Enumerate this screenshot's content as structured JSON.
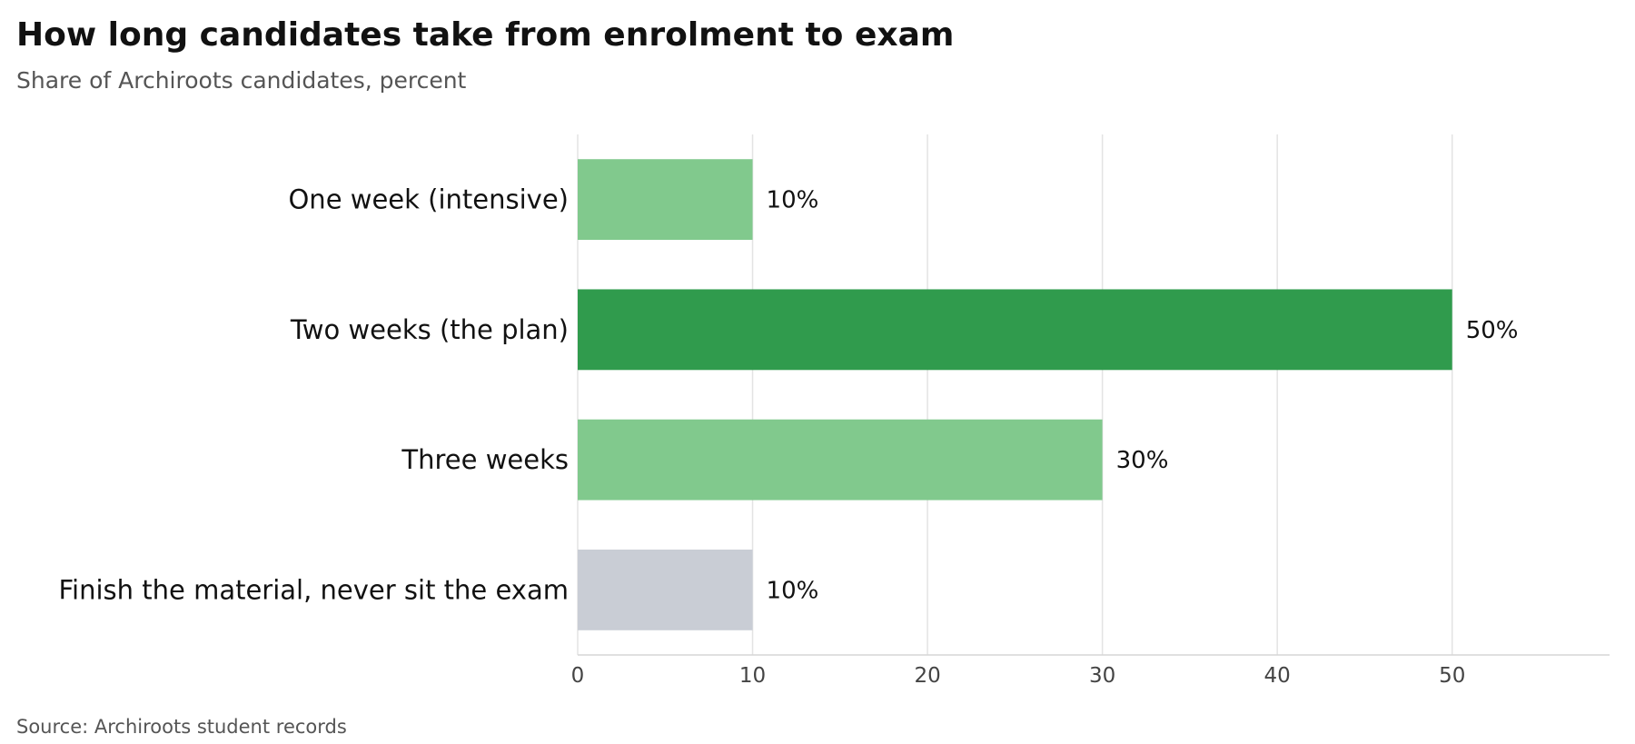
{
  "page": {
    "title": "How long candidates take from enrolment to exam",
    "subtitle": "Share of Archiroots candidates, percent",
    "source": "Source: Archiroots student records"
  },
  "chart_data": {
    "type": "bar",
    "orientation": "horizontal",
    "title": "How long candidates take from enrolment to exam",
    "subtitle": "Share of Archiroots candidates, percent",
    "categories": [
      "One week (intensive)",
      "Two weeks (the plan)",
      "Three weeks",
      "Finish the material, never sit the exam"
    ],
    "values": [
      10,
      50,
      30,
      10
    ],
    "value_labels": [
      "10%",
      "50%",
      "30%",
      "10%"
    ],
    "bar_colors": [
      "#81c98d",
      "#309b4d",
      "#81c98d",
      "#c9cdd5"
    ],
    "xticks": [
      0,
      10,
      20,
      30,
      40,
      50
    ],
    "xlim": [
      0,
      59
    ],
    "grid": "vertical",
    "legend": "none",
    "colors": {
      "gridline": "#e3e3e3",
      "axis": "#d6d6d6"
    }
  }
}
